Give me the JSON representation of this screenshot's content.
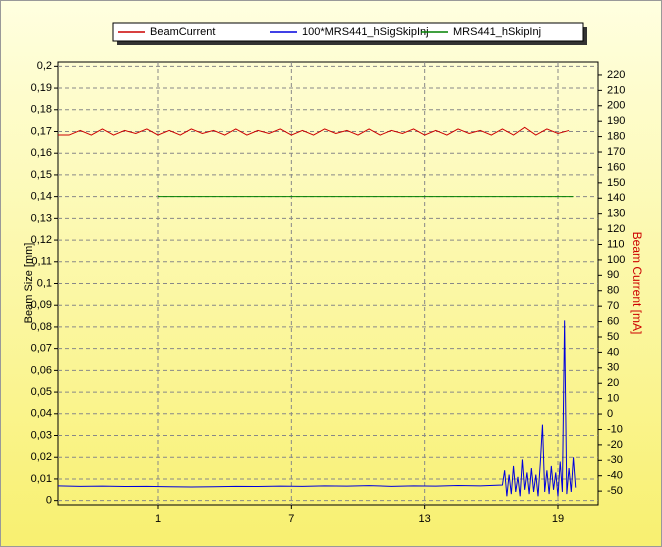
{
  "chart_data": {
    "type": "line",
    "y_label": "Beam Size [mm]",
    "y2_label": "Beam Current [mA]",
    "grid": true,
    "xlim": [
      -3.5,
      20.8
    ],
    "xticks": [
      1,
      7,
      13,
      19
    ],
    "ylim": [
      -0.002,
      0.202
    ],
    "yticks": [
      0,
      {
        "value": 0.01,
        "label": "0,01"
      },
      {
        "value": 0.02,
        "label": "0,02"
      },
      {
        "value": 0.03,
        "label": "0,03"
      },
      {
        "value": 0.04,
        "label": "0,04"
      },
      {
        "value": 0.05,
        "label": "0,05"
      },
      {
        "value": 0.06,
        "label": "0,06"
      },
      {
        "value": 0.07,
        "label": "0,07"
      },
      {
        "value": 0.08,
        "label": "0,08"
      },
      {
        "value": 0.09,
        "label": "0,09"
      },
      {
        "value": 0.1,
        "label": "0,1"
      },
      {
        "value": 0.11,
        "label": "0,11"
      },
      {
        "value": 0.12,
        "label": "0,12"
      },
      {
        "value": 0.13,
        "label": "0,13"
      },
      {
        "value": 0.14,
        "label": "0,14"
      },
      {
        "value": 0.15,
        "label": "0,15"
      },
      {
        "value": 0.16,
        "label": "0,16"
      },
      {
        "value": 0.17,
        "label": "0,17"
      },
      {
        "value": 0.18,
        "label": "0,18"
      },
      {
        "value": 0.19,
        "label": "0,19"
      },
      {
        "value": 0.2,
        "label": "0,2"
      }
    ],
    "y2lim": [
      -59,
      228.4
    ],
    "y2ticks": [
      -50,
      -40,
      -30,
      -20,
      -10,
      0,
      10,
      20,
      30,
      40,
      50,
      60,
      70,
      80,
      90,
      100,
      110,
      120,
      130,
      140,
      150,
      160,
      170,
      180,
      190,
      200,
      210,
      220
    ],
    "series": [
      {
        "name": "BeamCurrent",
        "color": "#cc0000",
        "axis": "y2",
        "x": [
          -3.5,
          -3,
          -2.5,
          -2,
          -1.5,
          -1,
          -0.5,
          0,
          0.5,
          1,
          1.5,
          2,
          2.5,
          3,
          3.5,
          4,
          4.5,
          5,
          5.5,
          6,
          6.5,
          7,
          7.5,
          8,
          8.5,
          9,
          9.5,
          10,
          10.5,
          11,
          11.5,
          12,
          12.5,
          13,
          13.5,
          14,
          14.5,
          15,
          15.5,
          16,
          16.5,
          17,
          17.5,
          18,
          18.5,
          19,
          19.5
        ],
        "values": [
          181,
          181,
          184,
          181,
          185,
          181,
          184,
          182,
          185,
          181,
          184,
          181,
          185,
          182,
          184,
          181,
          185,
          181,
          184,
          182,
          185,
          181,
          184,
          181,
          185,
          182,
          184,
          181,
          185,
          181,
          184,
          182,
          185,
          181,
          184,
          181,
          185,
          182,
          184,
          181,
          185,
          181,
          186,
          181,
          185,
          182,
          184
        ]
      },
      {
        "name": "100*MRS441_hSigSkipInj",
        "color": "#0000dd",
        "axis": "y",
        "x": [
          -3.5,
          -2.5,
          -1.5,
          -0.5,
          0.5,
          1.5,
          2.5,
          3.5,
          4.5,
          5.5,
          6.5,
          7.5,
          8.5,
          9.5,
          10.5,
          11.5,
          12.5,
          13.5,
          14.5,
          15.5,
          16.5,
          16.6,
          16.7,
          16.8,
          16.9,
          17,
          17.1,
          17.2,
          17.3,
          17.4,
          17.5,
          17.6,
          17.7,
          17.8,
          17.9,
          18,
          18.1,
          18.2,
          18.3,
          18.4,
          18.5,
          18.6,
          18.7,
          18.8,
          18.9,
          19,
          19.1,
          19.2,
          19.3,
          19.4,
          19.5,
          19.6,
          19.7,
          19.8
        ],
        "values": [
          0.0068,
          0.0066,
          0.0067,
          0.0065,
          0.0066,
          0.0064,
          0.0063,
          0.0064,
          0.0066,
          0.0065,
          0.0067,
          0.0066,
          0.0068,
          0.0067,
          0.0069,
          0.0066,
          0.0068,
          0.0067,
          0.007,
          0.0068,
          0.0072,
          0.014,
          0.002,
          0.012,
          0.003,
          0.016,
          0.004,
          0.011,
          0.002,
          0.019,
          0.005,
          0.013,
          0.003,
          0.015,
          0.004,
          0.012,
          0.002,
          0.017,
          0.035,
          0.004,
          0.014,
          0.003,
          0.016,
          0.005,
          0.013,
          0.002,
          0.018,
          0.004,
          0.083,
          0.003,
          0.015,
          0.004,
          0.02,
          0.006
        ]
      },
      {
        "name": "MRS441_hSkipInj",
        "color": "#008000",
        "axis": "y",
        "x": [
          1,
          5,
          10,
          15,
          17,
          18,
          19,
          19.7
        ],
        "values": [
          0.14,
          0.14,
          0.14,
          0.14,
          0.14,
          0.14,
          0.14,
          0.14
        ]
      }
    ]
  }
}
